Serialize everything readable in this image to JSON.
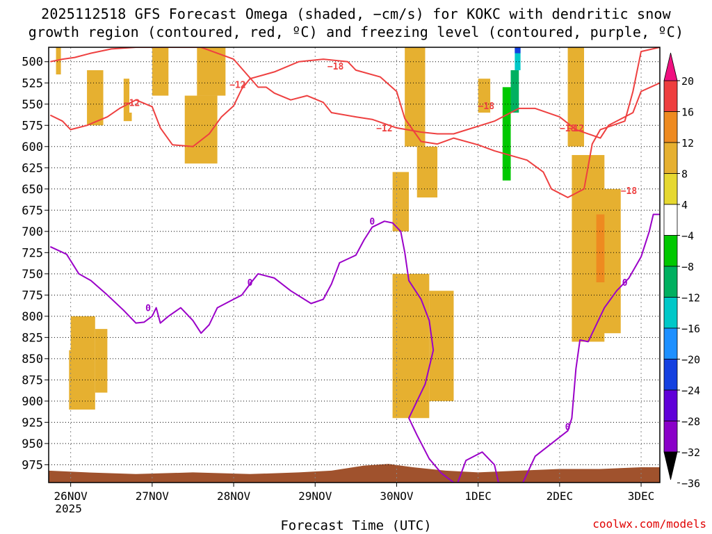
{
  "title_line1": "2025112518 GFS Forecast Omega (shaded, −cm/s) for KOKC with dendritic snow",
  "title_line2": "growth region (contoured, red, ºC) and freezing level (contoured, purple, ºC)",
  "watermark": "coolwx.com/models",
  "chart_data": {
    "type": "heatmap",
    "xlabel": "Forecast Time (UTC)",
    "ylabel": "Pressure (hPa)",
    "y_ticks": [
      500,
      525,
      550,
      575,
      600,
      625,
      650,
      675,
      700,
      725,
      750,
      775,
      800,
      825,
      850,
      875,
      900,
      925,
      950,
      975
    ],
    "ylim": [
      483,
      996
    ],
    "x_ticks": [
      {
        "label": "26NOV",
        "sub": "2025",
        "day": 0
      },
      {
        "label": "27NOV",
        "day": 1
      },
      {
        "label": "28NOV",
        "day": 2
      },
      {
        "label": "29NOV",
        "day": 3
      },
      {
        "label": "30NOV",
        "day": 4
      },
      {
        "label": "1DEC",
        "day": 5
      },
      {
        "label": "2DEC",
        "day": 6
      },
      {
        "label": "3DEC",
        "day": 7
      }
    ],
    "xlim_days": [
      -0.27,
      7.23
    ],
    "colorbar": {
      "bounds": [
        -36,
        -32,
        -28,
        -24,
        -20,
        -16,
        -12,
        -8,
        -4,
        4,
        8,
        12,
        16,
        20
      ],
      "labels": [
        "20",
        "16",
        "12",
        "8",
        "4",
        "−4",
        "−8",
        "−12",
        "−16",
        "−20",
        "−24",
        "−28",
        "−32",
        "−36"
      ],
      "colors": [
        "#999999",
        "#8a00c8",
        "#6000d8",
        "#1440e0",
        "#1e90ff",
        "#00c8c8",
        "#00b060",
        "#00c800",
        "#ffffff",
        "#e6d830",
        "#e6b030",
        "#ee8a20",
        "#ee3e3e",
        "#f01080"
      ]
    },
    "contours": [
      {
        "name": "dgz-upper",
        "label": "−12",
        "color": "#ee4040",
        "points": [
          [
            -0.25,
            500
          ],
          [
            -0.1,
            497
          ],
          [
            0.05,
            495
          ],
          [
            0.25,
            490
          ],
          [
            0.5,
            485
          ],
          [
            0.8,
            483
          ],
          [
            1.2,
            483
          ],
          [
            1.6,
            483
          ],
          [
            2.0,
            497
          ],
          [
            2.3,
            530
          ],
          [
            2.4,
            530
          ],
          [
            2.5,
            537
          ],
          [
            2.7,
            545
          ],
          [
            2.9,
            540
          ],
          [
            3.1,
            548
          ],
          [
            3.2,
            560
          ],
          [
            3.5,
            565
          ],
          [
            3.7,
            568
          ],
          [
            4.0,
            578
          ],
          [
            4.3,
            583
          ],
          [
            4.5,
            585
          ],
          [
            4.7,
            585
          ],
          [
            5.2,
            570
          ],
          [
            5.5,
            555
          ],
          [
            5.7,
            555
          ],
          [
            6.0,
            565
          ],
          [
            6.2,
            580
          ],
          [
            6.5,
            590
          ],
          [
            6.6,
            575
          ],
          [
            6.8,
            565
          ],
          [
            6.9,
            560
          ],
          [
            7.0,
            535
          ],
          [
            7.23,
            525
          ]
        ],
        "label_at": [
          [
            0.75,
            548
          ],
          [
            2.05,
            527
          ],
          [
            3.85,
            578
          ],
          [
            6.2,
            578
          ]
        ]
      },
      {
        "name": "dgz-lower",
        "label": "−18",
        "color": "#ee4040",
        "points": [
          [
            -0.25,
            563
          ],
          [
            -0.1,
            570
          ],
          [
            0.0,
            580
          ],
          [
            0.2,
            575
          ],
          [
            0.45,
            565
          ],
          [
            0.6,
            555
          ],
          [
            0.8,
            545
          ],
          [
            1.0,
            553
          ],
          [
            1.1,
            578
          ],
          [
            1.25,
            598
          ],
          [
            1.5,
            600
          ],
          [
            1.7,
            585
          ],
          [
            1.85,
            565
          ],
          [
            2.0,
            552
          ],
          [
            2.1,
            532
          ],
          [
            2.2,
            520
          ],
          [
            2.5,
            512
          ],
          [
            2.8,
            500
          ],
          [
            3.1,
            497
          ],
          [
            3.4,
            500
          ],
          [
            3.5,
            510
          ],
          [
            3.8,
            518
          ],
          [
            4.0,
            535
          ],
          [
            4.1,
            567
          ],
          [
            4.3,
            594
          ],
          [
            4.5,
            597
          ],
          [
            4.7,
            590
          ],
          [
            5.0,
            598
          ],
          [
            5.2,
            605
          ],
          [
            5.6,
            616
          ],
          [
            5.8,
            630
          ],
          [
            5.9,
            650
          ],
          [
            6.1,
            660
          ],
          [
            6.3,
            650
          ],
          [
            6.4,
            597
          ],
          [
            6.5,
            580
          ],
          [
            6.8,
            570
          ],
          [
            6.9,
            535
          ],
          [
            7.0,
            488
          ],
          [
            7.23,
            483
          ]
        ],
        "label_at": [
          [
            3.25,
            505
          ],
          [
            5.1,
            552
          ],
          [
            6.1,
            578
          ],
          [
            6.85,
            652
          ]
        ]
      },
      {
        "name": "freezing-level",
        "label": "0",
        "color": "#9a00c8",
        "points": [
          [
            -0.25,
            718
          ],
          [
            -0.05,
            727
          ],
          [
            0.1,
            750
          ],
          [
            0.25,
            758
          ],
          [
            0.45,
            775
          ],
          [
            0.65,
            793
          ],
          [
            0.8,
            808
          ],
          [
            0.9,
            807
          ],
          [
            1.0,
            800
          ],
          [
            1.05,
            790
          ],
          [
            1.1,
            808
          ],
          [
            1.2,
            800
          ],
          [
            1.35,
            790
          ],
          [
            1.5,
            805
          ],
          [
            1.6,
            820
          ],
          [
            1.7,
            810
          ],
          [
            1.8,
            790
          ],
          [
            2.0,
            780
          ],
          [
            2.1,
            775
          ],
          [
            2.2,
            762
          ],
          [
            2.3,
            750
          ],
          [
            2.5,
            755
          ],
          [
            2.7,
            770
          ],
          [
            2.95,
            785
          ],
          [
            3.1,
            780
          ],
          [
            3.2,
            762
          ],
          [
            3.3,
            737
          ],
          [
            3.5,
            728
          ],
          [
            3.6,
            710
          ],
          [
            3.7,
            695
          ],
          [
            3.85,
            688
          ],
          [
            3.95,
            690
          ],
          [
            4.05,
            700
          ],
          [
            4.1,
            725
          ],
          [
            4.15,
            758
          ],
          [
            4.3,
            780
          ],
          [
            4.4,
            805
          ],
          [
            4.45,
            840
          ],
          [
            4.35,
            880
          ],
          [
            4.15,
            920
          ],
          [
            4.25,
            940
          ],
          [
            4.4,
            968
          ],
          [
            4.55,
            985
          ],
          [
            4.7,
            996
          ]
        ],
        "label_at": [
          [
            3.7,
            688
          ],
          [
            2.2,
            760
          ],
          [
            0.95,
            790
          ]
        ]
      },
      {
        "name": "freezing-level-2",
        "label": "0",
        "color": "#9a00c8",
        "points": [
          [
            4.75,
            996
          ],
          [
            4.85,
            970
          ],
          [
            5.05,
            960
          ],
          [
            5.2,
            975
          ],
          [
            5.25,
            996
          ]
        ]
      },
      {
        "name": "freezing-level-3",
        "label": "0",
        "color": "#9a00c8",
        "points": [
          [
            5.55,
            996
          ],
          [
            5.7,
            965
          ],
          [
            5.9,
            950
          ],
          [
            6.1,
            935
          ],
          [
            6.15,
            920
          ],
          [
            6.2,
            862
          ],
          [
            6.25,
            828
          ],
          [
            6.35,
            830
          ],
          [
            6.45,
            810
          ],
          [
            6.55,
            790
          ],
          [
            6.7,
            770
          ],
          [
            6.85,
            755
          ],
          [
            7.0,
            730
          ],
          [
            7.1,
            700
          ],
          [
            7.15,
            680
          ],
          [
            7.23,
            680
          ]
        ],
        "label_at": [
          [
            6.1,
            930
          ],
          [
            6.8,
            760
          ]
        ]
      }
    ],
    "shading": [
      {
        "v": 6,
        "day": [
          -0.18,
          -0.12
        ],
        "p": [
          483,
          515
        ]
      },
      {
        "v": 6,
        "day": [
          0.2,
          0.4
        ],
        "p": [
          510,
          575
        ]
      },
      {
        "v": 6,
        "day": [
          0.65,
          0.75
        ],
        "p": [
          520,
          570
        ]
      },
      {
        "v": 6,
        "day": [
          -0.02,
          0.3
        ],
        "p": [
          800,
          910
        ]
      },
      {
        "v": 6,
        "day": [
          0.3,
          0.45
        ],
        "p": [
          815,
          890
        ]
      },
      {
        "v": 6,
        "day": [
          1.4,
          1.8
        ],
        "p": [
          540,
          620
        ]
      },
      {
        "v": 6,
        "day": [
          1.55,
          1.9
        ],
        "p": [
          483,
          540
        ]
      },
      {
        "v": 6,
        "day": [
          1.0,
          1.2
        ],
        "p": [
          483,
          540
        ]
      },
      {
        "v": 6,
        "day": [
          3.95,
          4.15
        ],
        "p": [
          630,
          700
        ]
      },
      {
        "v": 6,
        "day": [
          4.1,
          4.35
        ],
        "p": [
          483,
          600
        ]
      },
      {
        "v": 6,
        "day": [
          4.25,
          4.5
        ],
        "p": [
          600,
          660
        ]
      },
      {
        "v": 6,
        "day": [
          3.85,
          4.4
        ],
        "p": [
          750,
          920
        ]
      },
      {
        "v": 6,
        "day": [
          4.4,
          4.7
        ],
        "p": [
          770,
          900
        ]
      },
      {
        "v": 6,
        "day": [
          5.0,
          5.15
        ],
        "p": [
          520,
          580
        ]
      },
      {
        "v": 6,
        "day": [
          6.15,
          6.55
        ],
        "p": [
          610,
          830
        ]
      },
      {
        "v": 6,
        "day": [
          6.5,
          6.75
        ],
        "p": [
          650,
          820
        ]
      },
      {
        "v": 6,
        "day": [
          6.1,
          6.3
        ],
        "p": [
          483,
          600
        ]
      },
      {
        "v": 10,
        "day": [
          6.45,
          6.55
        ],
        "p": [
          680,
          760
        ]
      },
      {
        "v": -6,
        "day": [
          -0.08,
          -0.0
        ],
        "p": [
          650,
          840
        ]
      },
      {
        "v": -6,
        "day": [
          0.1,
          0.22
        ],
        "p": [
          483,
          510
        ]
      },
      {
        "v": -6,
        "day": [
          0.72,
          0.85
        ],
        "p": [
          483,
          560
        ]
      },
      {
        "v": -6,
        "day": [
          0.85,
          1.15
        ],
        "p": [
          600,
          800
        ]
      },
      {
        "v": -6,
        "day": [
          1.05,
          1.2
        ],
        "p": [
          800,
          860
        ]
      },
      {
        "v": -6,
        "day": [
          2.95,
          3.15
        ],
        "p": [
          483,
          700
        ]
      },
      {
        "v": -6,
        "day": [
          3.1,
          3.4
        ],
        "p": [
          540,
          700
        ]
      },
      {
        "v": -6,
        "day": [
          3.4,
          3.6
        ],
        "p": [
          560,
          750
        ]
      },
      {
        "v": -6,
        "day": [
          3.6,
          3.85
        ],
        "p": [
          650,
          800
        ]
      },
      {
        "v": -6,
        "day": [
          3.7,
          3.95
        ],
        "p": [
          750,
          930
        ]
      },
      {
        "v": -6,
        "day": [
          3.75,
          3.95
        ],
        "p": [
          483,
          650
        ]
      },
      {
        "v": -6,
        "day": [
          3.2,
          3.35
        ],
        "p": [
          700,
          780
        ]
      },
      {
        "v": -6,
        "day": [
          4.92,
          5.15
        ],
        "p": [
          560,
          690
        ]
      },
      {
        "v": -6,
        "day": [
          5.15,
          5.35
        ],
        "p": [
          483,
          660
        ]
      },
      {
        "v": -6,
        "day": [
          5.05,
          5.15
        ],
        "p": [
          700,
          760
        ]
      },
      {
        "v": -6,
        "day": [
          5.55,
          5.65
        ],
        "p": [
          725,
          820
        ]
      },
      {
        "v": -10,
        "day": [
          5.3,
          5.4
        ],
        "p": [
          530,
          640
        ]
      },
      {
        "v": -14,
        "day": [
          5.4,
          5.5
        ],
        "p": [
          510,
          560
        ]
      },
      {
        "v": -18,
        "day": [
          5.45,
          5.52
        ],
        "p": [
          483,
          510
        ]
      },
      {
        "v": -26,
        "day": [
          5.45,
          5.52
        ],
        "p": [
          483,
          490
        ]
      }
    ]
  }
}
